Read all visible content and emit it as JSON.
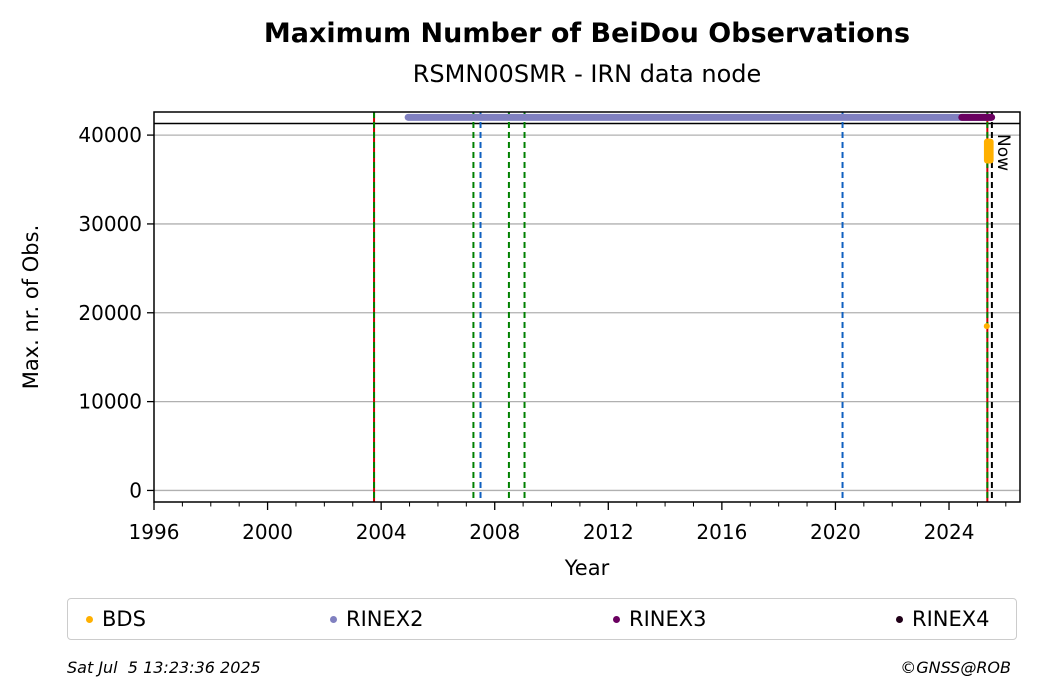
{
  "chart_data": {
    "type": "scatter",
    "title": "Maximum Number of BeiDou Observations",
    "subtitle": "RSMN00SMR - IRN data node",
    "xlabel": "Year",
    "ylabel": "Max. nr. of Obs.",
    "xlim": [
      1996,
      2026.5
    ],
    "ylim": [
      -1300,
      42600
    ],
    "x_ticks": [
      1996,
      2000,
      2004,
      2008,
      2012,
      2016,
      2020,
      2024
    ],
    "y_ticks": [
      0,
      10000,
      20000,
      30000,
      40000
    ],
    "grid": "horizontal",
    "now_label": "Now",
    "now_x": 2025.51,
    "reference_line_y": 41300,
    "vertical_lines": [
      {
        "x": 2003.75,
        "color": "#cc0000",
        "style": "solid"
      },
      {
        "x": 2003.75,
        "color": "#008000",
        "style": "dashed"
      },
      {
        "x": 2007.25,
        "color": "#008000",
        "style": "dashed"
      },
      {
        "x": 2007.5,
        "color": "#1060c0",
        "style": "dashed"
      },
      {
        "x": 2008.5,
        "color": "#008000",
        "style": "dashed"
      },
      {
        "x": 2009.05,
        "color": "#008000",
        "style": "dashed"
      },
      {
        "x": 2020.25,
        "color": "#1060c0",
        "style": "dashed"
      },
      {
        "x": 2025.35,
        "color": "#cc0000",
        "style": "solid"
      },
      {
        "x": 2025.35,
        "color": "#008000",
        "style": "dashed"
      }
    ],
    "series": [
      {
        "name": "BDS",
        "color": "#ffb000",
        "segments": [
          {
            "x_start": 2025.3,
            "x_end": 2025.5,
            "y_min": 36800,
            "y_max": 39600
          }
        ],
        "points": [
          {
            "x": 2025.33,
            "y": 18500
          }
        ]
      },
      {
        "name": "RINEX2",
        "color": "#8080c0",
        "segments": [
          {
            "x_start": 2004.95,
            "x_end": 2025.5,
            "y_min": 42000,
            "y_max": 42000
          }
        ],
        "points": []
      },
      {
        "name": "RINEX3",
        "color": "#6a0060",
        "segments": [
          {
            "x_start": 2024.45,
            "x_end": 2025.5,
            "y_min": 42000,
            "y_max": 42000
          }
        ],
        "points": []
      },
      {
        "name": "RINEX4",
        "color": "#200018",
        "segments": [],
        "points": []
      }
    ],
    "legend_position": "bottom"
  },
  "footer": {
    "timestamp": "Sat Jul  5 13:23:36 2025",
    "copyright": "©GNSS@ROB"
  }
}
